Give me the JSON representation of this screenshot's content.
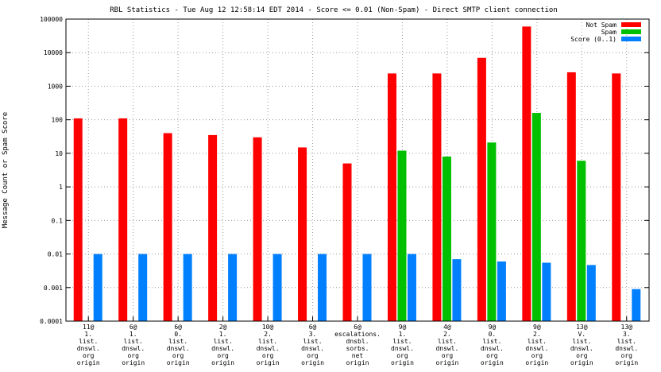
{
  "chart_data": {
    "type": "bar",
    "title": "RBL Statistics - Tue Aug 12 12:58:14 EDT 2014 - Score <= 0.01 (Non-Spam) - Direct SMTP client connection",
    "ylabel": "Message Count or Spam Score",
    "xlabel": "",
    "yscale": "log",
    "ylim": [
      0.0001,
      100000
    ],
    "yticks": [
      "0.0001",
      "0.001",
      "0.01",
      "0.1",
      "1",
      "10",
      "100",
      "1000",
      "10000",
      "100000"
    ],
    "grid": true,
    "legend_position": "top-right",
    "categories": [
      [
        "11@",
        "1.",
        "list.",
        "dnswl.",
        "org",
        "origin"
      ],
      [
        "6@",
        "1.",
        "list.",
        "dnswl.",
        "org",
        "origin"
      ],
      [
        "6@",
        "0.",
        "list.",
        "dnswl.",
        "org",
        "origin"
      ],
      [
        "2@",
        "1.",
        "list.",
        "dnswl.",
        "org",
        "origin"
      ],
      [
        "10@",
        "2.",
        "list.",
        "dnswl.",
        "org",
        "origin"
      ],
      [
        "6@",
        "3.",
        "list.",
        "dnswl.",
        "org",
        "origin"
      ],
      [
        "6@",
        "escalations.",
        "dnsbl.",
        "sorbs.",
        "net",
        "origin"
      ],
      [
        "9@",
        "1.",
        "list.",
        "dnswl.",
        "org",
        "origin"
      ],
      [
        "4@",
        "2.",
        "list.",
        "dnswl.",
        "org",
        "origin"
      ],
      [
        "9@",
        "0.",
        "list.",
        "dnswl.",
        "org",
        "origin"
      ],
      [
        "9@",
        "2.",
        "list.",
        "dnswl.",
        "org",
        "origin"
      ],
      [
        "13@",
        "V.",
        "list.",
        "dnswl.",
        "org",
        "origin"
      ],
      [
        "13@",
        "3.",
        "list.",
        "dnswl.",
        "org",
        "origin"
      ]
    ],
    "series": [
      {
        "name": "Not Spam",
        "color": "#ff0000",
        "values": [
          110,
          110,
          40,
          35,
          30,
          15,
          5,
          2400,
          2400,
          7000,
          60000,
          2600,
          2400
        ]
      },
      {
        "name": "Spam",
        "color": "#00c000",
        "values": [
          null,
          null,
          null,
          null,
          null,
          null,
          null,
          12,
          8,
          21,
          160,
          6,
          null
        ]
      },
      {
        "name": "Score (0..1)",
        "color": "#0080ff",
        "values": [
          0.01,
          0.01,
          0.01,
          0.01,
          0.01,
          0.01,
          0.01,
          0.01,
          0.007,
          0.006,
          0.0055,
          0.0047,
          0.0009
        ]
      }
    ]
  }
}
